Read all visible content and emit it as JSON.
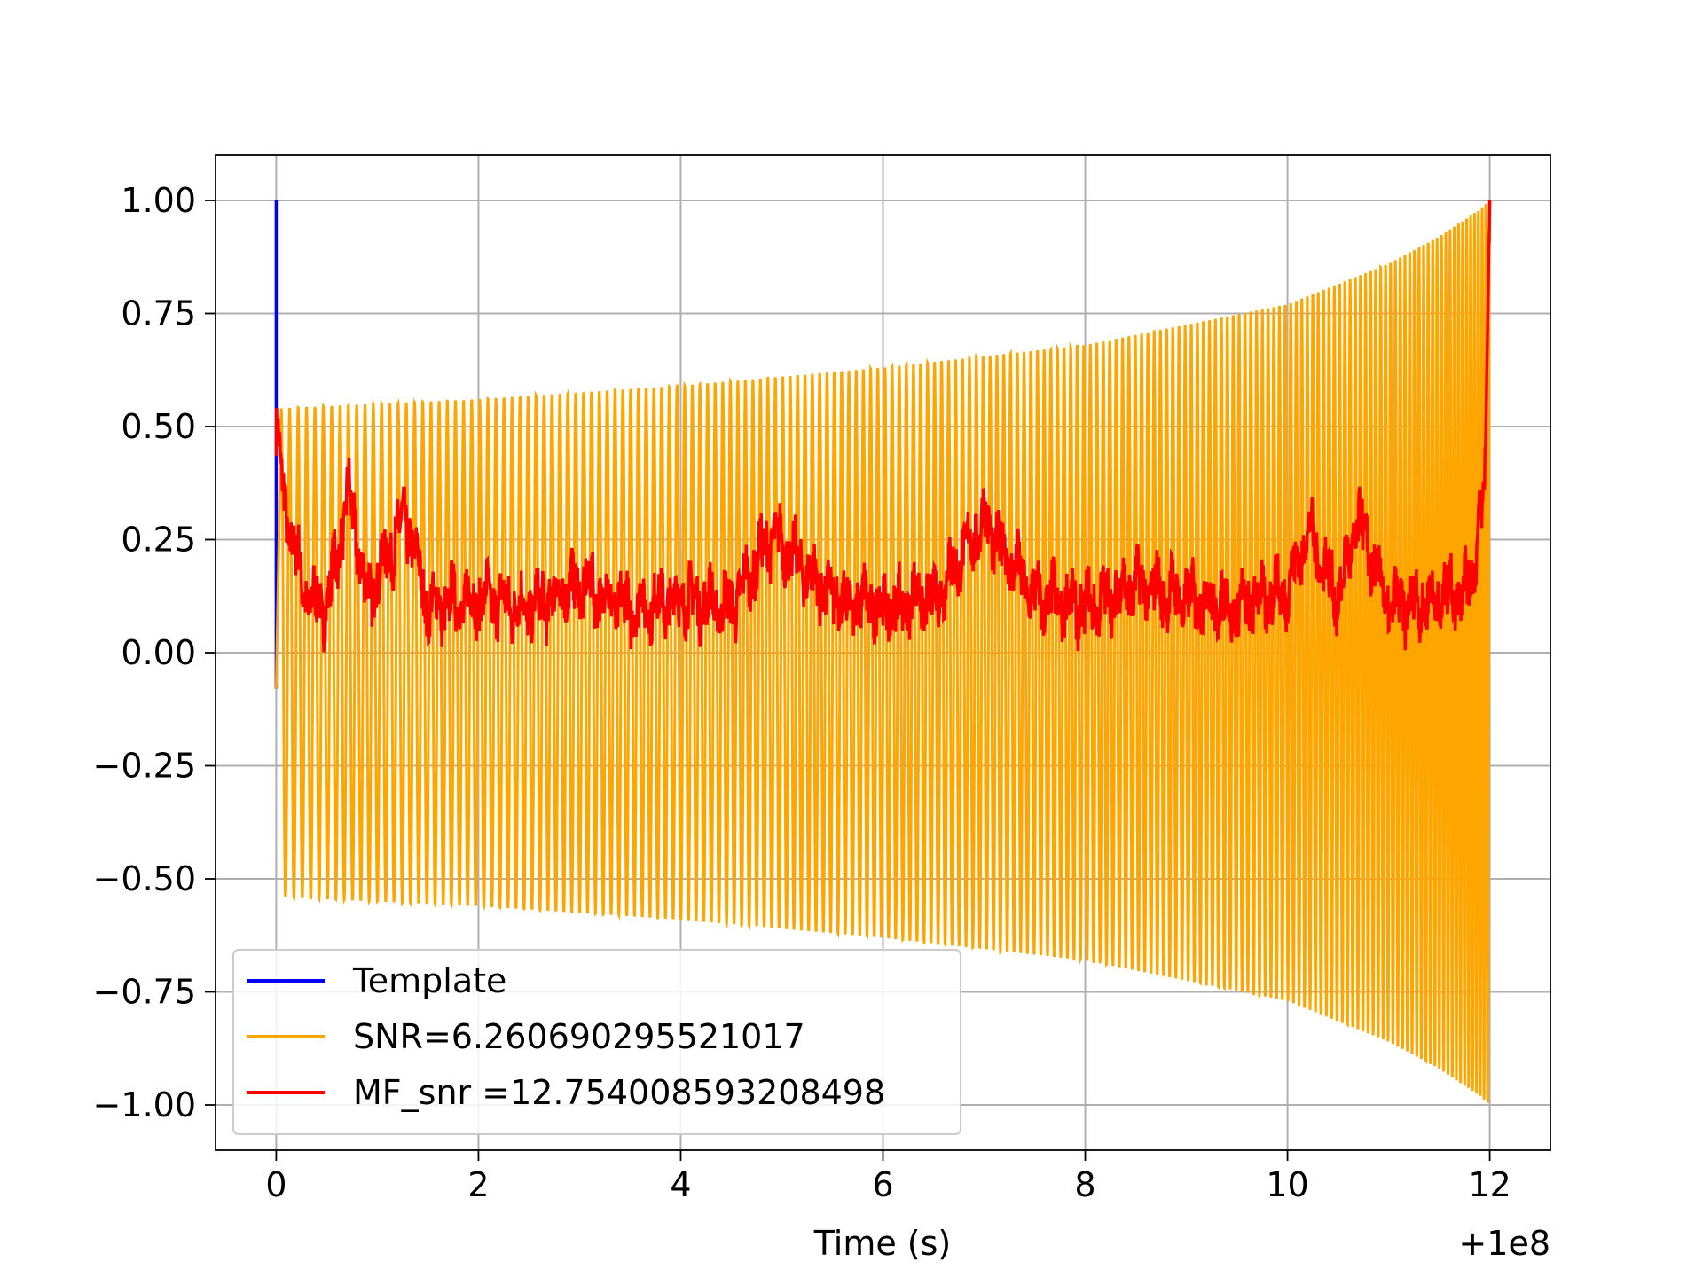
{
  "chart_data": {
    "type": "line",
    "xlabel": "Time (s)",
    "ylabel": "",
    "x_offset_label": "+1e8",
    "xlim": [
      -0.6,
      12.6
    ],
    "ylim": [
      -1.1,
      1.1
    ],
    "x_ticks": [
      0,
      2,
      4,
      6,
      8,
      10,
      12
    ],
    "x_tick_labels": [
      "0",
      "2",
      "4",
      "6",
      "8",
      "10",
      "12"
    ],
    "y_ticks": [
      -1.0,
      -0.75,
      -0.5,
      -0.25,
      0.0,
      0.25,
      0.5,
      0.75,
      1.0
    ],
    "y_tick_labels": [
      "−1.00",
      "−0.75",
      "−0.50",
      "−0.25",
      "0.00",
      "0.25",
      "0.50",
      "0.75",
      "1.00"
    ],
    "grid": true,
    "legend_position": "lower-left",
    "series": [
      {
        "name": "Template",
        "color": "#0000ff",
        "x": [
          0.0,
          0.0,
          0.0
        ],
        "y": [
          1.0,
          0.5,
          -0.08
        ]
      },
      {
        "name": "SNR=6.260690295521017",
        "color": "#ffa500",
        "x": [
          0.0,
          0.05,
          2.0,
          4.0,
          6.0,
          8.0,
          10.0,
          11.0,
          11.5,
          11.9,
          12.0
        ],
        "upper_envelope": [
          -0.08,
          0.54,
          0.56,
          0.59,
          0.63,
          0.68,
          0.77,
          0.86,
          0.92,
          0.98,
          1.0
        ],
        "lower_envelope": [
          -0.08,
          -0.54,
          -0.56,
          -0.59,
          -0.63,
          -0.68,
          -0.77,
          -0.86,
          -0.92,
          -0.98,
          -1.0
        ]
      },
      {
        "name": "MF_snr =12.754008593208498",
        "color": "#ff0000",
        "x": [
          0.0,
          0.1,
          0.3,
          0.5,
          0.72,
          0.9,
          1.28,
          1.5,
          2.0,
          2.5,
          3.0,
          3.5,
          4.0,
          4.5,
          4.9,
          5.5,
          6.0,
          6.5,
          7.0,
          7.5,
          8.0,
          8.5,
          9.0,
          9.5,
          10.0,
          10.2,
          10.5,
          10.7,
          11.0,
          11.5,
          11.8,
          11.95,
          12.0
        ],
        "y": [
          0.49,
          0.3,
          0.12,
          0.1,
          0.35,
          0.12,
          0.3,
          0.1,
          0.12,
          0.1,
          0.15,
          0.1,
          0.12,
          0.1,
          0.26,
          0.12,
          0.1,
          0.12,
          0.29,
          0.12,
          0.1,
          0.15,
          0.12,
          0.1,
          0.14,
          0.27,
          0.12,
          0.29,
          0.1,
          0.12,
          0.15,
          0.35,
          1.0
        ]
      }
    ]
  }
}
